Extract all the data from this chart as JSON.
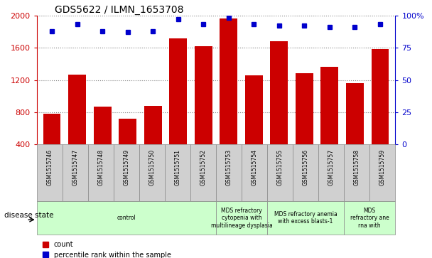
{
  "title": "GDS5622 / ILMN_1653708",
  "samples": [
    "GSM1515746",
    "GSM1515747",
    "GSM1515748",
    "GSM1515749",
    "GSM1515750",
    "GSM1515751",
    "GSM1515752",
    "GSM1515753",
    "GSM1515754",
    "GSM1515755",
    "GSM1515756",
    "GSM1515757",
    "GSM1515758",
    "GSM1515759"
  ],
  "counts": [
    780,
    1270,
    870,
    720,
    880,
    1720,
    1620,
    1960,
    1260,
    1680,
    1280,
    1360,
    1160,
    1580
  ],
  "percentile_ranks": [
    88,
    93,
    88,
    87,
    88,
    97,
    93,
    98,
    93,
    92,
    92,
    91,
    91,
    93
  ],
  "ylim_left": [
    400,
    2000
  ],
  "ylim_right": [
    0,
    100
  ],
  "yticks_left": [
    400,
    800,
    1200,
    1600,
    2000
  ],
  "yticks_right": [
    0,
    25,
    50,
    75,
    100
  ],
  "bar_color": "#cc0000",
  "dot_color": "#0000cc",
  "plot_bg": "#ffffff",
  "label_box_color": "#d0d0d0",
  "disease_group_color": "#ccffcc",
  "legend_count_label": "count",
  "legend_pct_label": "percentile rank within the sample",
  "disease_state_label": "disease state",
  "groups": [
    {
      "label": "control",
      "start": 0,
      "end": 7
    },
    {
      "label": "MDS refractory\ncytopenia with\nmultilineage dysplasia",
      "start": 7,
      "end": 9
    },
    {
      "label": "MDS refractory anemia\nwith excess blasts-1",
      "start": 9,
      "end": 12
    },
    {
      "label": "MDS\nrefractory ane\nrna with",
      "start": 12,
      "end": 14
    }
  ]
}
